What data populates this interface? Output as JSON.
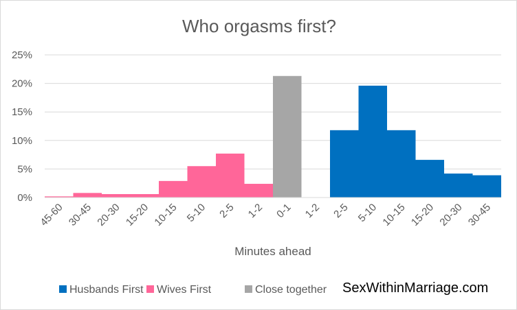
{
  "chart_data": {
    "type": "bar",
    "title": "Who orgasms first?",
    "xlabel": "Minutes ahead",
    "ylabel": "",
    "ylim": [
      0,
      25
    ],
    "yticks": [
      "0%",
      "5%",
      "10%",
      "15%",
      "20%",
      "25%"
    ],
    "grid": true,
    "legend_position": "bottom",
    "categories": [
      "45-60",
      "30-45",
      "20-30",
      "15-20",
      "10-15",
      "5-10",
      "2-5",
      "1-2",
      "0-1",
      "1-2",
      "2-5",
      "5-10",
      "10-15",
      "15-20",
      "20-30",
      "30-45"
    ],
    "series": [
      {
        "name": "Husbands First",
        "color": "#0070c0",
        "values": [
          null,
          null,
          null,
          null,
          null,
          null,
          null,
          null,
          null,
          0,
          11.8,
          19.6,
          11.8,
          6.6,
          4.2,
          3.9
        ]
      },
      {
        "name": "Wives First",
        "color": "#ff6699",
        "values": [
          0.2,
          0.8,
          0.6,
          0.6,
          2.9,
          5.5,
          7.7,
          2.4,
          null,
          null,
          null,
          null,
          null,
          null,
          null,
          null
        ]
      },
      {
        "name": "Close together",
        "color": "#a6a6a6",
        "values": [
          null,
          null,
          null,
          null,
          null,
          null,
          null,
          null,
          21.3,
          null,
          null,
          null,
          null,
          null,
          null,
          null
        ]
      }
    ]
  },
  "watermark": "SexWithinMarriage.com"
}
